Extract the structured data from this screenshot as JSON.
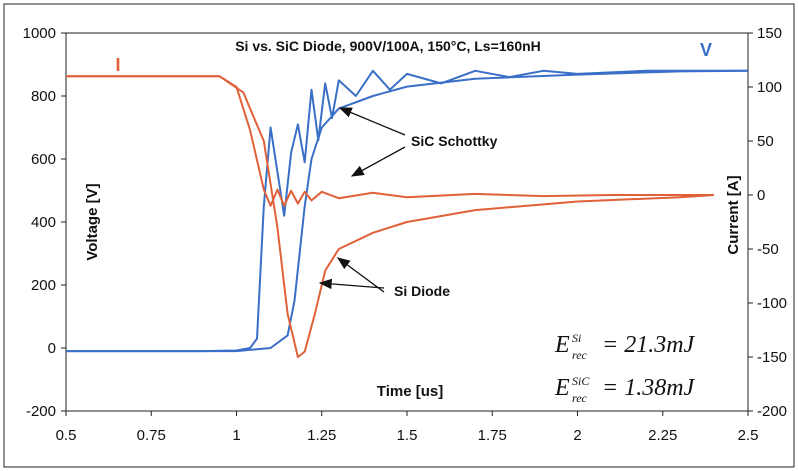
{
  "chart_data": {
    "type": "line",
    "title": "Si vs. SiC Diode, 900V/100A, 150°C, Ls=160nH",
    "xlabel": "Time [us]",
    "ylabel_left": "Voltage [V]",
    "ylabel_right": "Current [A]",
    "xlim": [
      0.5,
      2.5
    ],
    "ylim_left": [
      -200,
      1000
    ],
    "ylim_right": [
      -200,
      150
    ],
    "x_ticks": [
      "0.5",
      "0.75",
      "1",
      "1.25",
      "1.5",
      "1.75",
      "2",
      "2.25",
      "2.5"
    ],
    "y_ticks_left": [
      "-200",
      "0",
      "200",
      "400",
      "600",
      "800",
      "1000"
    ],
    "y_ticks_right": [
      "-200",
      "-150",
      "-100",
      "-50",
      "0",
      "50",
      "100",
      "150"
    ],
    "series_labels": {
      "current": "I",
      "voltage": "V"
    },
    "colors": {
      "current": "#e0603a",
      "voltage": "#3a6fc8"
    },
    "grid": false,
    "legend": "none",
    "series": [
      {
        "name": "V",
        "axis": "left",
        "color": "#3a6fc8",
        "curves": [
          {
            "x": [
              0.5,
              0.9,
              1.0,
              1.04,
              1.06,
              1.08,
              1.1,
              1.12,
              1.14,
              1.16,
              1.18,
              1.2,
              1.22,
              1.24,
              1.26,
              1.28,
              1.3,
              1.35,
              1.4,
              1.45,
              1.5,
              1.6,
              1.7,
              1.8,
              1.9,
              2.0,
              2.2,
              2.4,
              2.5
            ],
            "y": [
              -10,
              -10,
              -8,
              0,
              30,
              450,
              700,
              560,
              420,
              620,
              710,
              590,
              820,
              660,
              840,
              730,
              850,
              800,
              880,
              820,
              870,
              840,
              880,
              860,
              880,
              870,
              880,
              880,
              880
            ]
          },
          {
            "x": [
              0.5,
              1.0,
              1.1,
              1.15,
              1.17,
              1.2,
              1.22,
              1.25,
              1.3,
              1.4,
              1.5,
              1.7,
              2.0,
              2.3,
              2.5
            ],
            "y": [
              -10,
              -10,
              0,
              40,
              150,
              450,
              600,
              700,
              760,
              800,
              830,
              855,
              868,
              878,
              880
            ]
          }
        ]
      },
      {
        "name": "I",
        "axis": "right",
        "color": "#e0603a",
        "curves": [
          {
            "x": [
              0.5,
              0.95,
              1.0,
              1.04,
              1.08,
              1.1,
              1.12,
              1.14,
              1.16,
              1.18,
              1.2,
              1.22,
              1.25,
              1.3,
              1.4,
              1.5,
              1.7,
              1.9,
              2.1,
              2.3,
              2.4
            ],
            "y": [
              110,
              110,
              100,
              60,
              5,
              -10,
              5,
              -10,
              4,
              -8,
              3,
              -5,
              3,
              -3,
              2,
              -2,
              1,
              -1,
              0,
              0,
              0
            ]
          },
          {
            "x": [
              0.5,
              0.95,
              1.02,
              1.08,
              1.12,
              1.15,
              1.18,
              1.2,
              1.23,
              1.26,
              1.3,
              1.4,
              1.5,
              1.7,
              2.0,
              2.3,
              2.4
            ],
            "y": [
              110,
              110,
              95,
              50,
              -30,
              -110,
              -150,
              -145,
              -110,
              -70,
              -50,
              -35,
              -25,
              -14,
              -6,
              -2,
              0
            ]
          }
        ]
      }
    ],
    "annotations": [
      {
        "text": "SiC Schottky"
      },
      {
        "text": "Si Diode"
      }
    ],
    "equations": [
      {
        "E": "E",
        "sup": "Si",
        "sub": "rec",
        "value": "= 21.3mJ"
      },
      {
        "E": "E",
        "sup": "SiC",
        "sub": "rec",
        "value": "= 1.38mJ"
      }
    ]
  }
}
